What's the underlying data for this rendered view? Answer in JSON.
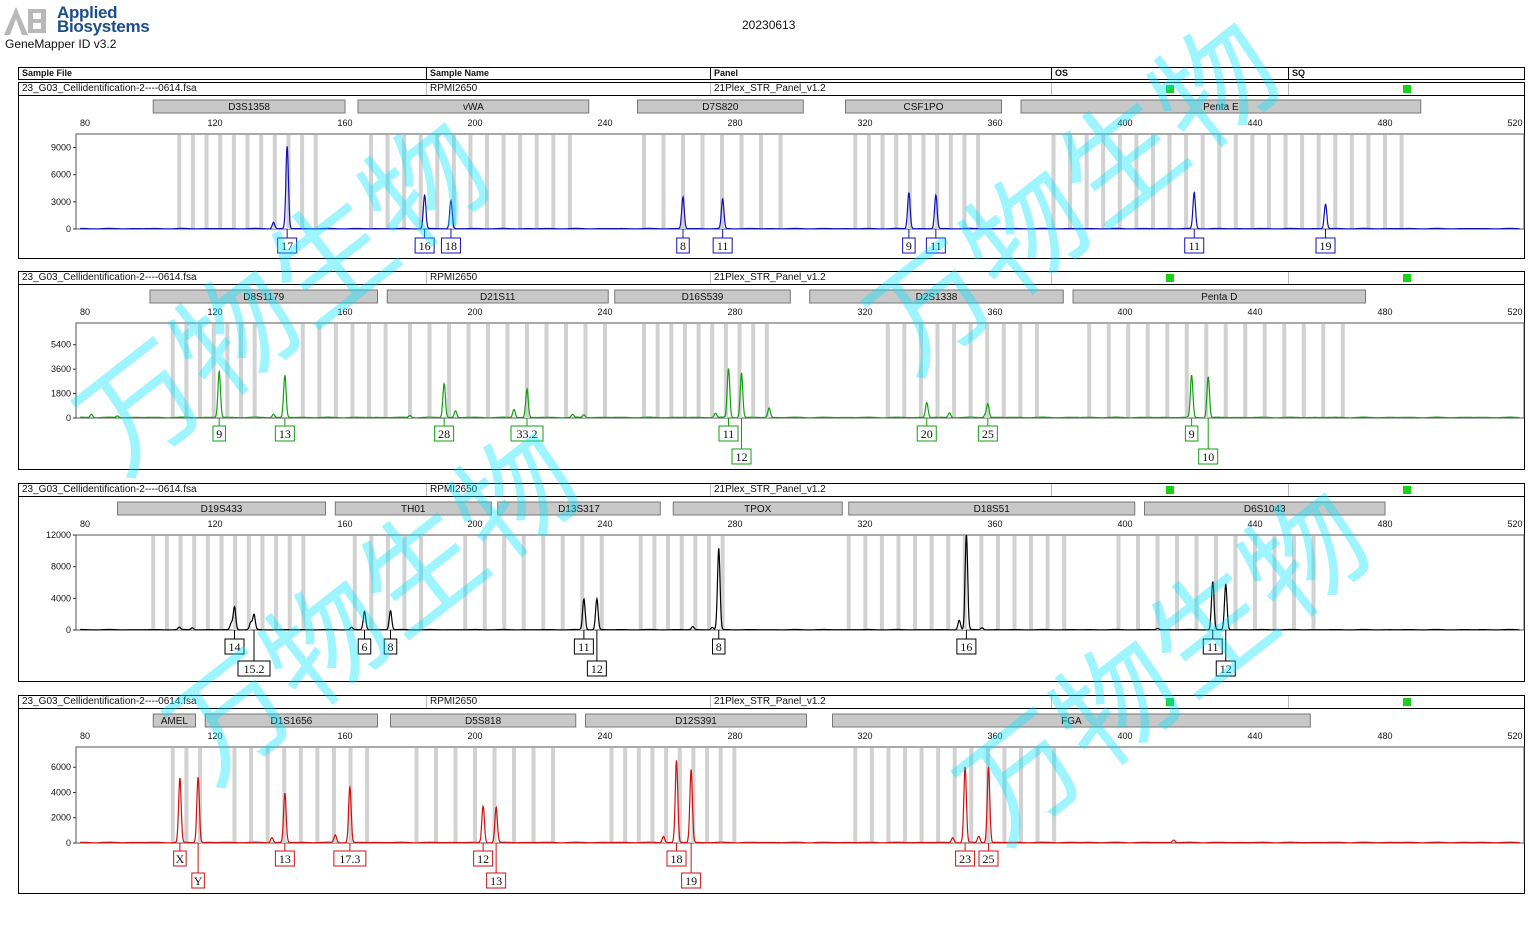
{
  "header": {
    "brand_line1": "Applied",
    "brand_line2": "Biosystems",
    "software": "GeneMapper ID v3.2",
    "run_date": "20230613",
    "columns": {
      "sample_file": "Sample File",
      "sample_name": "Sample Name",
      "panel": "Panel",
      "os": "OS",
      "sq": "SQ"
    }
  },
  "colors": {
    "blue": "#1010b8",
    "green": "#10a010",
    "black": "#000000",
    "red": "#d01010",
    "bin": "#d2d2d2",
    "locus_box": "#c8c8c8",
    "quality_flag": "#19d119",
    "watermark": "#00e5ff"
  },
  "watermark_text": "万物生物",
  "panels": [
    {
      "sample_file": "23_G03_Cellidentification-2----0614.fsa",
      "sample_name": "RPMI2650",
      "panel": "21Plex_STR_Panel_v1.2",
      "dye": "blue",
      "chart_data": {
        "type": "line",
        "title": "",
        "x_ticks": [
          80,
          120,
          160,
          200,
          240,
          280,
          320,
          360,
          400,
          440,
          480,
          520
        ],
        "xlim": [
          80,
          520
        ],
        "ylim": [
          0,
          10500
        ],
        "y_ticks": [
          0,
          3000,
          6000,
          9000
        ],
        "loci": [
          {
            "name": "D3S1358",
            "start": 101,
            "end": 160
          },
          {
            "name": "vWA",
            "start": 164,
            "end": 235
          },
          {
            "name": "D7S820",
            "start": 250,
            "end": 301
          },
          {
            "name": "CSF1PO",
            "start": 314,
            "end": 362
          },
          {
            "name": "Penta E",
            "start": 368,
            "end": 491
          }
        ],
        "peaks": [
          {
            "x": 138.0,
            "height": 700
          },
          {
            "x": 142.2,
            "height": 9100,
            "allele": "17"
          },
          {
            "x": 184.5,
            "height": 3700,
            "allele": "16"
          },
          {
            "x": 192.6,
            "height": 3100,
            "allele": "18"
          },
          {
            "x": 264.0,
            "height": 3500,
            "allele": "8"
          },
          {
            "x": 276.2,
            "height": 3300,
            "allele": "11"
          },
          {
            "x": 333.5,
            "height": 4000,
            "allele": "9"
          },
          {
            "x": 341.8,
            "height": 3700,
            "allele": "11"
          },
          {
            "x": 421.3,
            "height": 4000,
            "allele": "11"
          },
          {
            "x": 461.7,
            "height": 2700,
            "allele": "19"
          }
        ],
        "bins": [
          [
            109,
            153
          ],
          [
            168,
            234
          ],
          [
            252,
            297
          ],
          [
            317,
            356
          ],
          [
            378,
            486
          ]
        ]
      }
    },
    {
      "sample_file": "23_G03_Cellidentification-2----0614.fsa",
      "sample_name": "RPMI2650",
      "panel": "21Plex_STR_Panel_v1.2",
      "dye": "green",
      "chart_data": {
        "type": "line",
        "title": "",
        "x_ticks": [
          80,
          120,
          160,
          200,
          240,
          280,
          320,
          360,
          400,
          440,
          480,
          520
        ],
        "xlim": [
          80,
          520
        ],
        "ylim": [
          0,
          7000
        ],
        "y_ticks": [
          0,
          1800,
          3600,
          5400
        ],
        "loci": [
          {
            "name": "D8S1179",
            "start": 100,
            "end": 170
          },
          {
            "name": "D21S11",
            "start": 173,
            "end": 241
          },
          {
            "name": "D16S539",
            "start": 243,
            "end": 297
          },
          {
            "name": "D2S1338",
            "start": 303,
            "end": 381
          },
          {
            "name": "Penta D",
            "start": 384,
            "end": 474
          }
        ],
        "peaks": [
          {
            "x": 82.0,
            "height": 250
          },
          {
            "x": 90.0,
            "height": 120
          },
          {
            "x": 121.3,
            "height": 3400,
            "allele": "9"
          },
          {
            "x": 138.0,
            "height": 250
          },
          {
            "x": 141.5,
            "height": 3100,
            "allele": "13"
          },
          {
            "x": 180.0,
            "height": 150
          },
          {
            "x": 190.5,
            "height": 2500,
            "allele": "28"
          },
          {
            "x": 194.0,
            "height": 500
          },
          {
            "x": 290.5,
            "height": 700
          },
          {
            "x": 212.0,
            "height": 600
          },
          {
            "x": 216.0,
            "height": 2100,
            "allele": "33.2"
          },
          {
            "x": 230.0,
            "height": 200
          },
          {
            "x": 233.5,
            "height": 200
          },
          {
            "x": 274.0,
            "height": 300
          },
          {
            "x": 278.0,
            "height": 3600,
            "allele": "11"
          },
          {
            "x": 282.0,
            "height": 3300,
            "allele": "12"
          },
          {
            "x": 339.0,
            "height": 1100,
            "allele": "20"
          },
          {
            "x": 346.0,
            "height": 350
          },
          {
            "x": 357.0,
            "height": 200
          },
          {
            "x": 357.8,
            "height": 1000,
            "allele": "25"
          },
          {
            "x": 420.5,
            "height": 3100,
            "allele": "9"
          },
          {
            "x": 425.6,
            "height": 3000,
            "allele": "10"
          }
        ],
        "bins": [
          [
            107,
            134
          ],
          [
            147,
            176
          ],
          [
            180,
            245
          ],
          [
            252,
            293
          ],
          [
            327,
            378
          ],
          [
            389,
            471
          ]
        ]
      }
    },
    {
      "sample_file": "23_G03_Cellidentification-2----0614.fsa",
      "sample_name": "RPMI2650",
      "panel": "21Plex_STR_Panel_v1.2",
      "dye": "black",
      "chart_data": {
        "type": "line",
        "title": "",
        "x_ticks": [
          80,
          120,
          160,
          200,
          240,
          280,
          320,
          360,
          400,
          440,
          480,
          520
        ],
        "xlim": [
          80,
          520
        ],
        "ylim": [
          0,
          12000
        ],
        "y_ticks": [
          0,
          4000,
          8000,
          12000
        ],
        "loci": [
          {
            "name": "D19S433",
            "start": 90,
            "end": 154
          },
          {
            "name": "TH01",
            "start": 157,
            "end": 205
          },
          {
            "name": "D13S317",
            "start": 207,
            "end": 257
          },
          {
            "name": "TPOX",
            "start": 261,
            "end": 313
          },
          {
            "name": "D18S51",
            "start": 315,
            "end": 403
          },
          {
            "name": "D6S1043",
            "start": 406,
            "end": 480
          }
        ],
        "peaks": [
          {
            "x": 109.0,
            "height": 300
          },
          {
            "x": 113.0,
            "height": 250
          },
          {
            "x": 125.0,
            "height": 800
          },
          {
            "x": 126.0,
            "height": 2900,
            "allele": "14"
          },
          {
            "x": 131.0,
            "height": 900
          },
          {
            "x": 132.0,
            "height": 1900,
            "allele": "15.2"
          },
          {
            "x": 162.0,
            "height": 300
          },
          {
            "x": 166.0,
            "height": 2300,
            "allele": "6"
          },
          {
            "x": 174.0,
            "height": 2400,
            "allele": "8"
          },
          {
            "x": 233.5,
            "height": 3900,
            "allele": "11"
          },
          {
            "x": 237.5,
            "height": 3900,
            "allele": "12"
          },
          {
            "x": 267.0,
            "height": 400
          },
          {
            "x": 273.0,
            "height": 300
          },
          {
            "x": 275.0,
            "height": 10300,
            "allele": "8"
          },
          {
            "x": 349.0,
            "height": 1200
          },
          {
            "x": 351.2,
            "height": 12000,
            "allele": "16"
          },
          {
            "x": 356.0,
            "height": 250
          },
          {
            "x": 410.0,
            "height": 150
          },
          {
            "x": 427.0,
            "height": 6100,
            "allele": "11"
          },
          {
            "x": 431.0,
            "height": 5800,
            "allele": "12"
          }
        ],
        "bins": [
          [
            101,
            150
          ],
          [
            163,
            185
          ],
          [
            197,
            241
          ],
          [
            251,
            278
          ],
          [
            315,
            382
          ],
          [
            398,
            460
          ]
        ]
      }
    },
    {
      "sample_file": "23_G03_Cellidentification-2----0614.fsa",
      "sample_name": "RPMI2650",
      "panel": "21Plex_STR_Panel_v1.2",
      "dye": "red",
      "chart_data": {
        "type": "line",
        "title": "",
        "x_ticks": [
          80,
          120,
          160,
          200,
          240,
          280,
          320,
          360,
          400,
          440,
          480,
          520
        ],
        "xlim": [
          80,
          520
        ],
        "ylim": [
          0,
          7600
        ],
        "y_ticks": [
          0,
          2000,
          4000,
          6000
        ],
        "loci": [
          {
            "name": "AMEL",
            "start": 101,
            "end": 114
          },
          {
            "name": "D1S1656",
            "start": 117,
            "end": 170
          },
          {
            "name": "D5S818",
            "start": 174,
            "end": 231
          },
          {
            "name": "D12S391",
            "start": 234,
            "end": 302
          },
          {
            "name": "FGA",
            "start": 310,
            "end": 457
          }
        ],
        "peaks": [
          {
            "x": 109.2,
            "height": 5100,
            "allele": "X"
          },
          {
            "x": 114.8,
            "height": 5200,
            "allele": "Y"
          },
          {
            "x": 137.5,
            "height": 400
          },
          {
            "x": 141.5,
            "height": 3900,
            "allele": "13"
          },
          {
            "x": 157.0,
            "height": 600
          },
          {
            "x": 161.5,
            "height": 4400,
            "allele": "17.3"
          },
          {
            "x": 202.5,
            "height": 2900,
            "allele": "12"
          },
          {
            "x": 206.5,
            "height": 2800,
            "allele": "13"
          },
          {
            "x": 258.0,
            "height": 500
          },
          {
            "x": 262.0,
            "height": 6500,
            "allele": "18"
          },
          {
            "x": 266.5,
            "height": 5800,
            "allele": "19"
          },
          {
            "x": 347.0,
            "height": 400
          },
          {
            "x": 350.8,
            "height": 6000,
            "allele": "23"
          },
          {
            "x": 355.0,
            "height": 500
          },
          {
            "x": 358.0,
            "height": 6000,
            "allele": "25"
          },
          {
            "x": 415.0,
            "height": 200
          }
        ],
        "bins": [
          [
            107,
            116
          ],
          [
            126,
            168
          ],
          [
            182,
            226
          ],
          [
            242,
            283
          ],
          [
            317,
            382
          ]
        ]
      }
    }
  ]
}
